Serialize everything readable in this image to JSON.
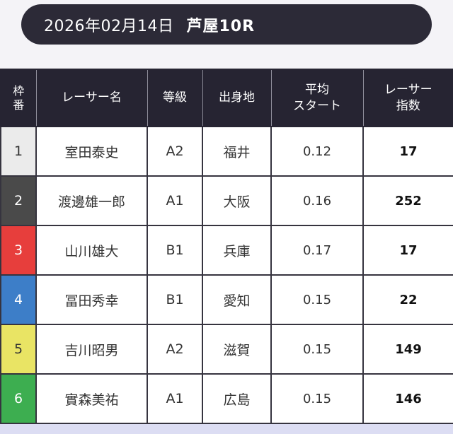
{
  "page": {
    "top_background": "#f4f3f7",
    "bottom_background": "#dcddf3"
  },
  "header": {
    "date": "2026年02月14日",
    "race": "芦屋10R",
    "background": "#2c2a37",
    "text_color": "#ffffff"
  },
  "table": {
    "header_background": "#262432",
    "header_text_color": "#ffffff",
    "columns": [
      {
        "key": "waku",
        "label": "枠番",
        "label_lines": [
          "枠",
          "番"
        ]
      },
      {
        "key": "name",
        "label": "レーサー名",
        "label_lines": [
          "レーサー名"
        ]
      },
      {
        "key": "grade",
        "label": "等級",
        "label_lines": [
          "等級"
        ]
      },
      {
        "key": "origin",
        "label": "出身地",
        "label_lines": [
          "出身地"
        ]
      },
      {
        "key": "avg_start",
        "label": "平均スタート",
        "label_lines": [
          "平均",
          "スタート"
        ]
      },
      {
        "key": "index",
        "label": "レーサー指数",
        "label_lines": [
          "レーサー",
          "指数"
        ]
      }
    ],
    "rows": [
      {
        "waku": "1",
        "name": "室田泰史",
        "grade": "A2",
        "origin": "福井",
        "avg_start": "0.12",
        "index": "17",
        "waku_bg": "#ebebeb",
        "waku_color": "#333333"
      },
      {
        "waku": "2",
        "name": "渡邊雄一郎",
        "grade": "A1",
        "origin": "大阪",
        "avg_start": "0.16",
        "index": "252",
        "waku_bg": "#4a4a4a",
        "waku_color": "#ffffff"
      },
      {
        "waku": "3",
        "name": "山川雄大",
        "grade": "B1",
        "origin": "兵庫",
        "avg_start": "0.17",
        "index": "17",
        "waku_bg": "#e73e3c",
        "waku_color": "#ffffff"
      },
      {
        "waku": "4",
        "name": "冨田秀幸",
        "grade": "B1",
        "origin": "愛知",
        "avg_start": "0.15",
        "index": "22",
        "waku_bg": "#3d7ec8",
        "waku_color": "#ffffff"
      },
      {
        "waku": "5",
        "name": "吉川昭男",
        "grade": "A2",
        "origin": "滋賀",
        "avg_start": "0.15",
        "index": "149",
        "waku_bg": "#e9e464",
        "waku_color": "#333333"
      },
      {
        "waku": "6",
        "name": "實森美祐",
        "grade": "A1",
        "origin": "広島",
        "avg_start": "0.15",
        "index": "146",
        "waku_bg": "#3dae50",
        "waku_color": "#ffffff"
      }
    ]
  }
}
